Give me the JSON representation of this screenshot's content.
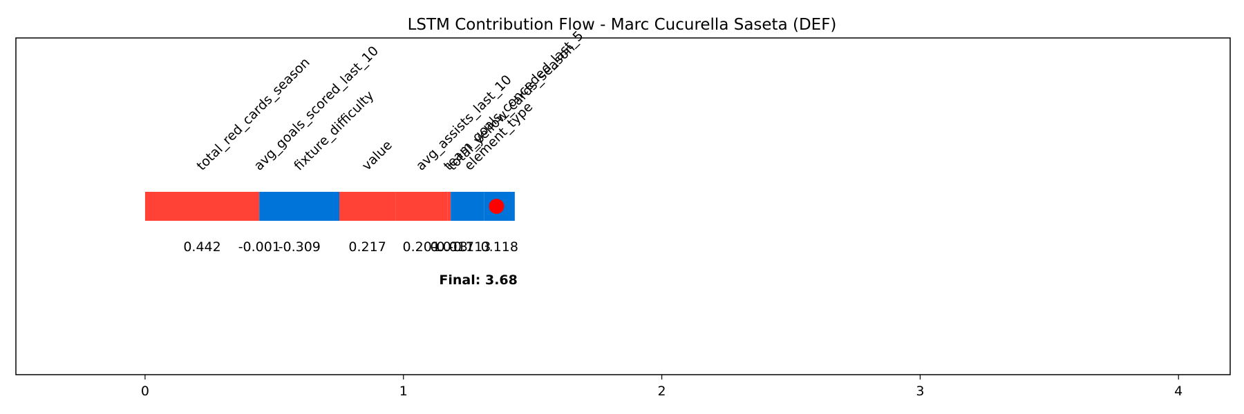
{
  "chart_data": {
    "type": "waterfall-bar",
    "title": "LSTM Contribution Flow - Marc Cucurella Saseta (DEF)",
    "xlabel": "",
    "ylabel": "",
    "xlim": [
      -0.5,
      4.2
    ],
    "xticks": [
      0,
      1,
      2,
      3,
      4
    ],
    "grid": false,
    "segments": [
      {
        "feature": "total_red_cards_season",
        "value": 0.442,
        "color": "#ff4136"
      },
      {
        "feature": "avg_goals_scored_last_10",
        "value": -0.001,
        "color": "#0074d9"
      },
      {
        "feature": "fixture_difficulty",
        "value": -0.309,
        "color": "#0074d9"
      },
      {
        "feature": "value",
        "value": 0.217,
        "color": "#ff4136"
      },
      {
        "feature": "avg_assists_last_10",
        "value": 0.201,
        "color": "#ff4136"
      },
      {
        "feature": "team_goals_conceded_last_5",
        "value": 0.013,
        "color": "#ff4136"
      },
      {
        "feature": "total_yellow_cards_season",
        "value": -0.017,
        "color": "#0074d9"
      },
      {
        "feature": "element_type",
        "value": -0.113,
        "color": "#0074d9"
      },
      {
        "feature": "",
        "value": 0.118,
        "color": "#0074d9"
      }
    ],
    "final_marker_color": "#ff0000",
    "final_label": "Final: 3.68"
  }
}
